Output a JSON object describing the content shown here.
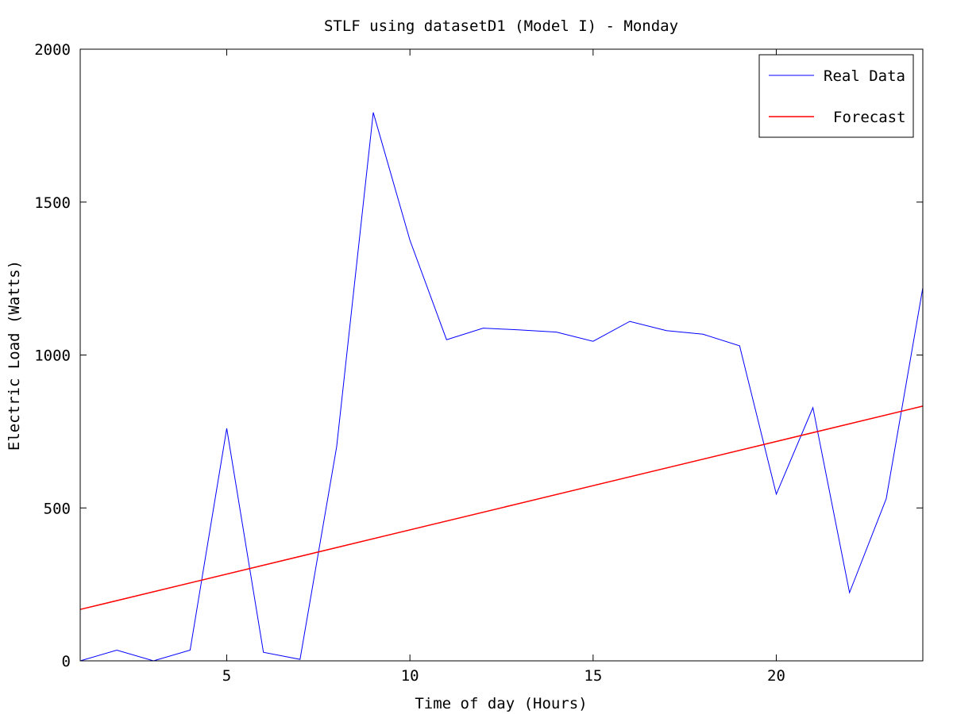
{
  "chart_data": {
    "type": "line",
    "title": "STLF using datasetD1 (Model I) - Monday",
    "xlabel": "Time of day (Hours)",
    "ylabel": "Electric Load (Watts)",
    "xlim": [
      1,
      24
    ],
    "ylim": [
      0,
      2000
    ],
    "xticks": [
      5,
      10,
      15,
      20
    ],
    "yticks": [
      0,
      500,
      1000,
      1500,
      2000
    ],
    "grid": false,
    "legend_position": "top-right",
    "series": [
      {
        "name": "Real Data",
        "color": "#0000ff",
        "x": [
          1,
          2,
          3,
          4,
          5,
          6,
          7,
          8,
          9,
          10,
          11,
          12,
          13,
          14,
          15,
          16,
          17,
          18,
          19,
          20,
          21,
          22,
          23,
          24
        ],
        "y": [
          0,
          35,
          0,
          35,
          760,
          28,
          5,
          700,
          1793,
          1375,
          1050,
          1088,
          1082,
          1075,
          1045,
          1110,
          1080,
          1068,
          1030,
          545,
          828,
          223,
          530,
          1220
        ]
      },
      {
        "name": "Forecast",
        "color": "#ff0000",
        "x": [
          1,
          24
        ],
        "y": [
          168,
          833
        ]
      }
    ]
  }
}
